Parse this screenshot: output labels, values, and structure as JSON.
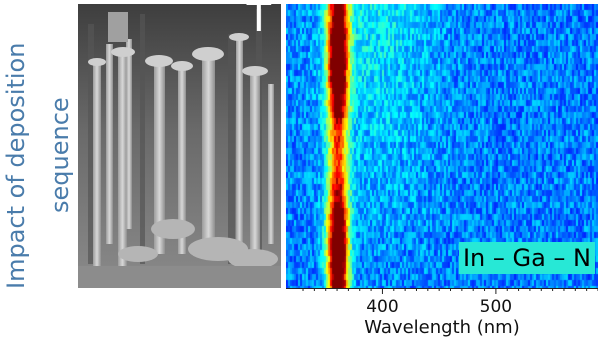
{
  "figure": {
    "side_title_line1": "Impact of deposition",
    "side_title_line2": "sequence",
    "side_title_color": "#4a7cab",
    "sem_panel_letter": "T",
    "map_label": "In – Ga – N",
    "map_label_bg": "#27e8d6"
  },
  "chart_data": {
    "type": "heatmap",
    "xlabel": "Wavelength (nm)",
    "xlim": [
      315,
      590
    ],
    "xticks": [
      400,
      500
    ],
    "xtick_labels": [
      "400",
      "500"
    ],
    "peak_wavelength": 360,
    "colormap": "jet",
    "grid": false
  }
}
